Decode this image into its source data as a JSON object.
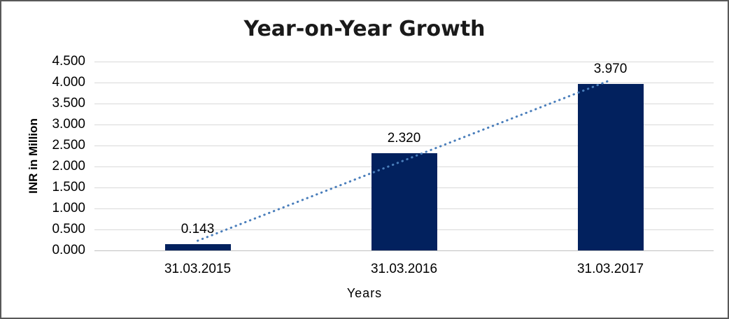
{
  "chart_data": {
    "type": "bar",
    "title": "Year-on-Year Growth",
    "xlabel": "Years",
    "ylabel": "INR in Million",
    "categories": [
      "31.03.2015",
      "31.03.2016",
      "31.03.2017"
    ],
    "values": [
      0.143,
      2.32,
      3.97
    ],
    "data_labels": [
      "0.143",
      "2.320",
      "3.970"
    ],
    "ylim": [
      0,
      4.5
    ],
    "ytick_step": 0.5,
    "ytick_labels": [
      "0.000",
      "0.500",
      "1.000",
      "1.500",
      "2.000",
      "2.500",
      "3.000",
      "3.500",
      "4.000",
      "4.500"
    ],
    "grid": true,
    "legend": "none",
    "bar_color": "#02215E",
    "gridline_color": "#D9D9D9",
    "zero_line_color": "#BFBFBF",
    "trendline": {
      "type": "linear",
      "style": "dotted",
      "color": "#4A7EBB",
      "start_category_index": 0,
      "end_category_index": 2,
      "start_value": 0.231,
      "end_value": 4.058
    }
  }
}
